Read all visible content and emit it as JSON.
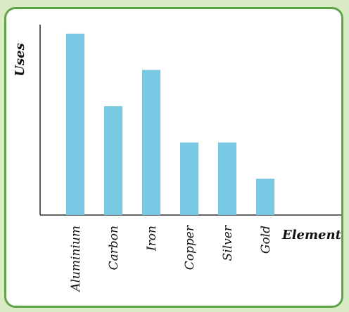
{
  "chart_data": {
    "type": "bar",
    "categories": [
      "Aluminium",
      "Carbon",
      "Iron",
      "Copper",
      "Silver",
      "Gold"
    ],
    "values": [
      10,
      6,
      8,
      4,
      4,
      2
    ],
    "xlabel": "Element",
    "ylabel": "Uses",
    "ylim": [
      0,
      10.5
    ],
    "grid": false,
    "colors": {
      "bar": "#78c8e4",
      "frame": "#5fa24a",
      "background": "#d9ecc6"
    }
  }
}
